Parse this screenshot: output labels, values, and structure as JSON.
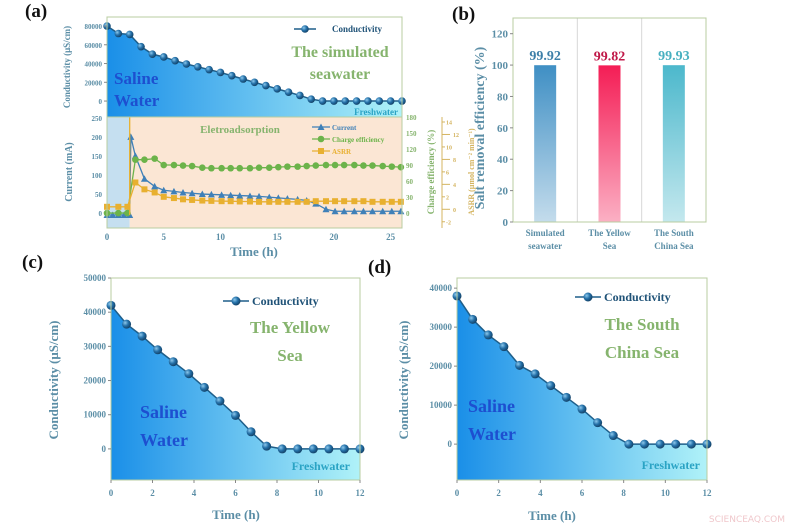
{
  "panels": {
    "a": "(a)",
    "b": "(b)",
    "c": "(c)",
    "d": "(d)"
  },
  "watermark": "SCIENCEAQ.COM",
  "colors": {
    "line": "#1f5f8a",
    "area_start": "#1a8fe8",
    "area_end": "#b0f2f8",
    "current": "#3f80b8",
    "charge_efficiency": "#6cb34a",
    "asrr": "#e8b030",
    "phase1_bg": "#c5dff0",
    "phase2_bg": "#fbe6d4"
  },
  "chart_data": [
    {
      "id": "a-top",
      "type": "area",
      "ylabel": "Conductivity (μS/cm)",
      "legend": "Conductivity",
      "legend_placement": "top-right",
      "annotations": {
        "title_line1": "The simulated",
        "title_line2": "seawater",
        "saline_line1": "Saline",
        "saline_line2": "Water",
        "fresh": "Freshwater"
      },
      "xlim": [
        0,
        26
      ],
      "ylim": [
        -17000,
        89600
      ],
      "yticks": [
        0,
        20000,
        40000,
        60000,
        80000
      ],
      "x": [
        0,
        1,
        2,
        3,
        4,
        5,
        6,
        7,
        8,
        9,
        10,
        11,
        12,
        13,
        14,
        15,
        16,
        17,
        18,
        19,
        20,
        21,
        22,
        23,
        24,
        25,
        26
      ],
      "y": [
        80000,
        72000,
        71000,
        58000,
        50000,
        47000,
        43000,
        39500,
        36500,
        33500,
        30500,
        27000,
        23500,
        20000,
        16500,
        13000,
        9500,
        6000,
        2000,
        0,
        0,
        0,
        0,
        0,
        0,
        0,
        0
      ]
    },
    {
      "id": "a-bottom",
      "type": "line",
      "xlabel": "Time (h)",
      "ylabel": "Current (mA)",
      "ylabel_right1": "Charge efficiency (%)",
      "ylabel_right2": "ASRR (μmol cm⁻² min⁻¹)",
      "annotation": "Eletroadsorption",
      "legend_placement": "top-right",
      "xlim": [
        0,
        26
      ],
      "xticks": [
        0,
        5,
        10,
        15,
        20,
        25
      ],
      "ylim": [
        -39,
        252
      ],
      "yticks": [
        0,
        50,
        100,
        150,
        200,
        250
      ],
      "ylim_right1": [
        -28,
        180
      ],
      "yticks_right1": [
        0,
        30,
        60,
        90,
        120,
        150,
        180
      ],
      "ylim_right2": [
        -3,
        14.8
      ],
      "yticks_right2": [
        -2,
        0,
        2,
        4,
        6,
        8,
        10,
        12,
        14
      ],
      "phases": [
        [
          0,
          2
        ],
        [
          2,
          26
        ]
      ],
      "series": [
        {
          "name": "Current",
          "axis": "left",
          "marker": "triangle",
          "x": [
            0,
            0.5,
            1,
            1.5,
            2,
            2.1,
            2.5,
            3.3,
            4.2,
            5,
            5.9,
            6.7,
            7.5,
            8.4,
            9.2,
            10.1,
            10.9,
            11.7,
            12.6,
            13.4,
            14.3,
            15.1,
            15.9,
            16.8,
            17.6,
            18.4,
            19.3,
            20.1,
            20.9,
            21.8,
            22.6,
            23.4,
            24.3,
            25.1,
            25.9
          ],
          "y": [
            -5,
            -5,
            -5,
            -5,
            -5,
            200,
            150,
            90,
            70,
            60,
            57,
            54,
            52,
            50,
            49,
            48,
            47,
            46,
            45,
            44,
            42,
            40,
            38,
            36,
            33,
            25,
            10,
            5,
            5,
            5,
            5,
            5,
            5,
            5,
            5
          ]
        },
        {
          "name": "Charge efficiency",
          "axis": "right1",
          "marker": "circle",
          "x": [
            0,
            1,
            1.8,
            2.5,
            3.3,
            4.2,
            5,
            5.9,
            6.7,
            7.5,
            8.4,
            9.2,
            10.1,
            10.9,
            11.7,
            12.6,
            13.4,
            14.3,
            15.1,
            15.9,
            16.8,
            17.6,
            18.4,
            19.3,
            20.1,
            20.9,
            21.8,
            22.6,
            23.4,
            24.3,
            25.1,
            25.9
          ],
          "y": [
            0,
            0,
            0,
            100,
            100,
            102,
            90,
            90,
            89,
            88,
            85,
            84,
            84,
            84,
            84,
            84,
            85,
            85,
            86,
            87,
            87,
            88,
            89,
            90,
            90,
            90,
            90,
            89,
            89,
            88,
            87,
            86
          ]
        },
        {
          "name": "ASRR",
          "axis": "right2",
          "marker": "square",
          "x": [
            0,
            1,
            1.8,
            2.5,
            3.3,
            4.2,
            5,
            5.9,
            6.7,
            7.5,
            8.4,
            9.2,
            10.1,
            10.9,
            11.7,
            12.6,
            13.4,
            14.3,
            15.1,
            15.9,
            16.8,
            17.6,
            18.4,
            19.3,
            20.1,
            20.9,
            21.8,
            22.6,
            23.4,
            24.3,
            25.1,
            25.9
          ],
          "y": [
            0.4,
            0.4,
            0.4,
            4.3,
            3.2,
            2.7,
            2.0,
            1.8,
            1.6,
            1.5,
            1.4,
            1.35,
            1.3,
            1.3,
            1.25,
            1.25,
            1.2,
            1.2,
            1.2,
            1.2,
            1.2,
            1.2,
            1.3,
            1.3,
            1.3,
            1.3,
            1.3,
            1.3,
            1.2,
            1.2,
            1.2,
            1.2
          ]
        }
      ]
    },
    {
      "id": "b",
      "type": "bar",
      "ylabel": "Salt removal efficiency (%)",
      "categories": [
        [
          "Simulated",
          "seawater"
        ],
        [
          "The Yellow",
          "Sea"
        ],
        [
          "The South",
          "China Sea"
        ]
      ],
      "values": [
        99.92,
        99.82,
        99.93
      ],
      "labels": [
        "99.92",
        "99.82",
        "99.93"
      ],
      "bar_colors": [
        [
          "#3f8fc4",
          "#c4dcec"
        ],
        [
          "#f41d55",
          "#fbb0c4"
        ],
        [
          "#4cb8cc",
          "#c4e8ee"
        ]
      ],
      "label_colors": [
        "#3d7fa8",
        "#c01848",
        "#48b0c0"
      ],
      "ylim": [
        0,
        130
      ],
      "yticks": [
        0,
        20,
        40,
        60,
        80,
        100,
        120
      ]
    },
    {
      "id": "c",
      "type": "area",
      "xlabel": "Time (h)",
      "ylabel": "Conductivity (μS/cm)",
      "legend": "Conductivity",
      "legend_placement": "top-right",
      "annotations": {
        "title_line1": "The Yellow",
        "title_line2": "Sea",
        "saline_line1": "Saline",
        "saline_line2": "Water",
        "fresh": "Freshwater"
      },
      "xlim": [
        0,
        12
      ],
      "xticks": [
        0,
        2,
        4,
        6,
        8,
        10,
        12
      ],
      "ylim": [
        -9100,
        50000
      ],
      "yticks": [
        0,
        10000,
        20000,
        30000,
        40000,
        50000
      ],
      "x": [
        0,
        0.75,
        1.5,
        2.25,
        3,
        3.75,
        4.5,
        5.25,
        6,
        6.75,
        7.5,
        8.25,
        9,
        9.75,
        10.5,
        11.25,
        12
      ],
      "y": [
        42000,
        36500,
        33000,
        29000,
        25500,
        22000,
        18000,
        14000,
        9800,
        5000,
        800,
        0,
        0,
        0,
        0,
        0,
        0
      ]
    },
    {
      "id": "d",
      "type": "area",
      "xlabel": "Time (h)",
      "ylabel": "Conductivity (μS/cm)",
      "legend": "Conductivity",
      "legend_placement": "top-right",
      "annotations": {
        "title_line1": "The South",
        "title_line2": "China Sea",
        "saline_line1": "Saline",
        "saline_line2": "Water",
        "fresh": "Freshwater"
      },
      "xlim": [
        0,
        12
      ],
      "xticks": [
        0,
        2,
        4,
        6,
        8,
        10,
        12
      ],
      "ylim": [
        -9200,
        42600
      ],
      "yticks": [
        0,
        10000,
        20000,
        30000,
        40000
      ],
      "x": [
        0,
        0.75,
        1.5,
        2.25,
        3,
        3.75,
        4.5,
        5.25,
        6,
        6.75,
        7.5,
        8.25,
        9,
        9.75,
        10.5,
        11.25,
        12
      ],
      "y": [
        38000,
        32000,
        28000,
        25000,
        20200,
        18000,
        15000,
        12000,
        9000,
        5500,
        2200,
        0,
        0,
        0,
        0,
        0,
        0
      ]
    }
  ]
}
